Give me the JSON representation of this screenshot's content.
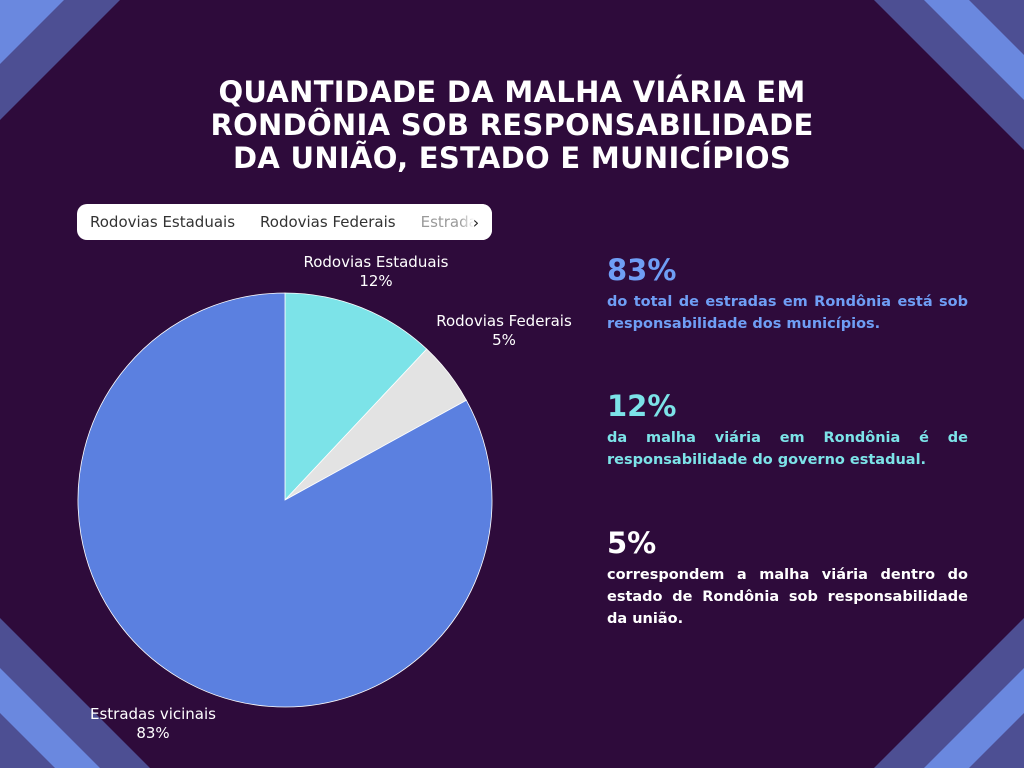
{
  "title_lines": [
    "QUANTIDADE DA MALHA VIÁRIA EM",
    "RONDÔNIA SOB RESPONSABILIDADE",
    "DA UNIÃO, ESTADO E MUNICÍPIOS"
  ],
  "legend": {
    "items": [
      "Rodovias Estaduais",
      "Rodovias Federais",
      "Estradas vicinais"
    ],
    "next_icon": "chevron-right-icon"
  },
  "chart_data": {
    "type": "pie",
    "slices": [
      {
        "label": "Rodovias Estaduais",
        "value": 12,
        "display": "12%",
        "color": "#7ce3e8"
      },
      {
        "label": "Rodovias Federais",
        "value": 5,
        "display": "5%",
        "color": "#e3e3e3"
      },
      {
        "label": "Estradas vicinais",
        "value": 83,
        "display": "83%",
        "color": "#5b80e0"
      }
    ]
  },
  "stats": [
    {
      "pct": "83%",
      "desc": "do total de estradas em Rondônia está sob responsabilidade dos municípios.",
      "color": "#6f9ef5"
    },
    {
      "pct": "12%",
      "desc": "da malha viária em Rondônia é de responsabilidade do governo estadual.",
      "color": "#7ce3e8"
    },
    {
      "pct": "5%",
      "desc": "correspondem a malha viária dentro do estado de Rondônia sob responsabilidade da união.",
      "color": "#ffffff"
    }
  ],
  "colors": {
    "background": "#2e0b3b",
    "corner_dark": "#4d4f93",
    "corner_light": "#6a88df"
  }
}
